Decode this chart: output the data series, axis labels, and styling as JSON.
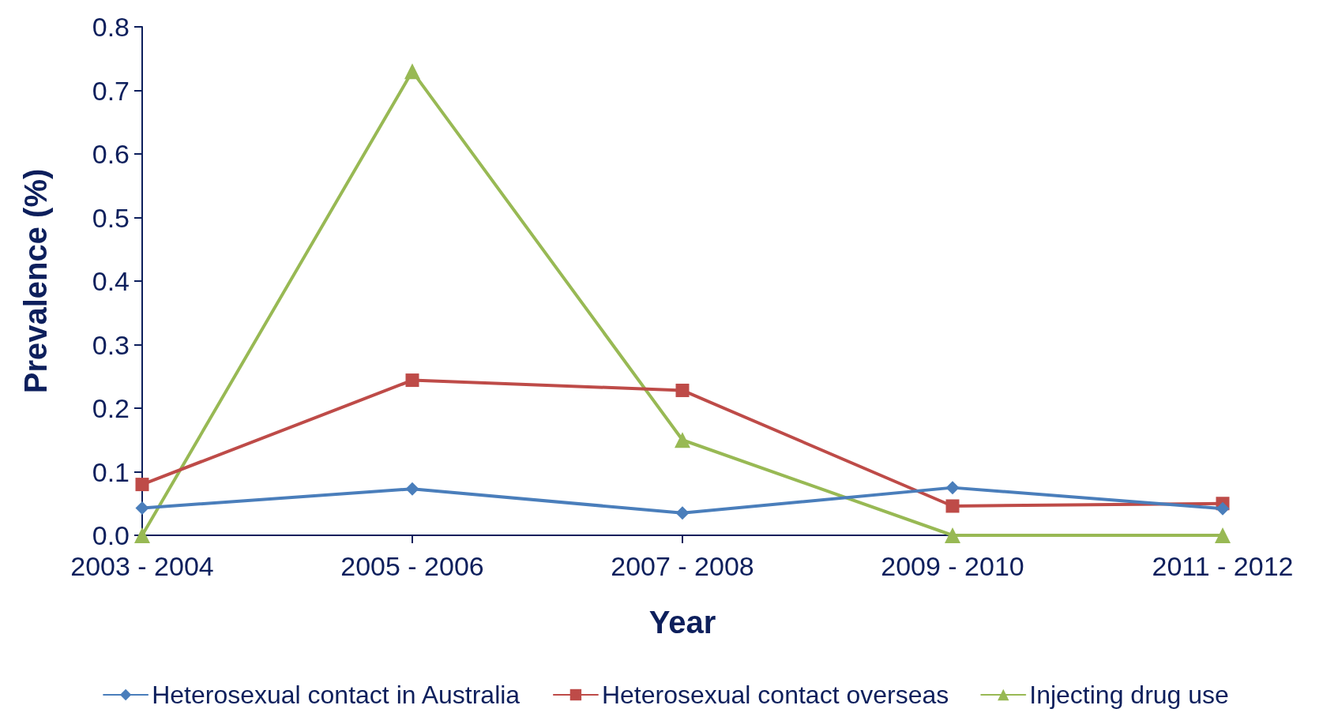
{
  "chart_data": {
    "type": "line",
    "xlabel": "Year",
    "ylabel": "Prevalence (%)",
    "categories": [
      "2003 - 2004",
      "2005 - 2006",
      "2007 - 2008",
      "2009 - 2010",
      "2011 - 2012"
    ],
    "series": [
      {
        "name": "Heterosexual contact in Australia",
        "color": "#4a7ebb",
        "marker": "diamond",
        "values": [
          0.043,
          0.073,
          0.035,
          0.075,
          0.042
        ]
      },
      {
        "name": "Heterosexual contact overseas",
        "color": "#be4b48",
        "marker": "square",
        "values": [
          0.08,
          0.244,
          0.228,
          0.046,
          0.05
        ]
      },
      {
        "name": "Injecting drug use",
        "color": "#98b954",
        "marker": "triangle",
        "values": [
          0,
          0.73,
          0.15,
          0,
          0
        ]
      }
    ],
    "ylim": [
      0,
      0.8
    ],
    "yticks": [
      {
        "value": 0,
        "label": "0.0"
      },
      0.1,
      0.2,
      0.3,
      0.4,
      0.5,
      0.6,
      0.7,
      0.8
    ],
    "grid": false,
    "legend": "bottom",
    "line_style": "solid"
  }
}
